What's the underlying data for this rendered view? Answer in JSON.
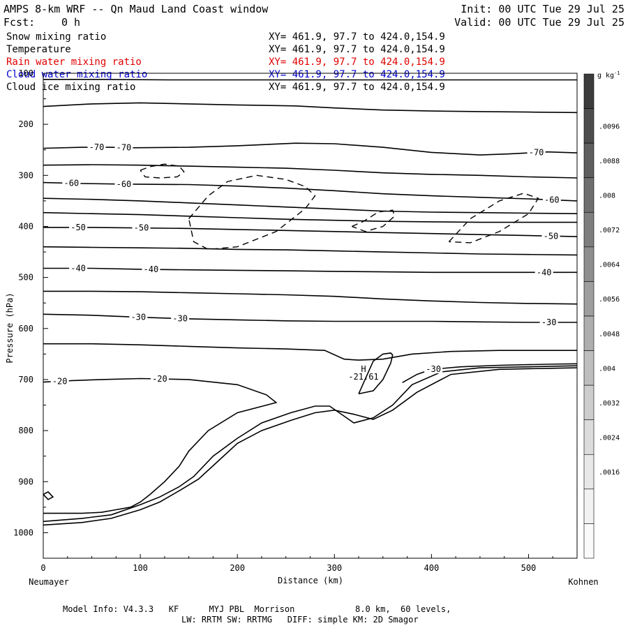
{
  "header": {
    "title": "AMPS 8-km WRF -- Qn Maud Land Coast window",
    "init": "Init: 00 UTC Tue 29 Jul 25",
    "fcst_label": "Fcst:",
    "fcst_value": "0 h",
    "valid": "Valid: 00 UTC Tue 29 Jul 25"
  },
  "fields": [
    {
      "name": "Snow mixing ratio",
      "xy": "XY= 461.9, 97.7 to 424.0,154.9",
      "color": "#000000"
    },
    {
      "name": "Temperature",
      "xy": "XY= 461.9, 97.7 to 424.0,154.9",
      "color": "#000000"
    },
    {
      "name": "Rain water mixing ratio",
      "xy": "XY= 461.9, 97.7 to 424.0,154.9",
      "color": "#e00000"
    },
    {
      "name": "Cloud water mixing ratio",
      "xy": "XY= 461.9, 97.7 to 424.0,154.9",
      "color": "#0000cc"
    },
    {
      "name": "Cloud ice mixing ratio",
      "xy": "XY= 461.9, 97.7 to 424.0,154.9",
      "color": "#000000"
    }
  ],
  "chart_data": {
    "type": "line",
    "xlabel": "Distance (km)",
    "ylabel": "Pressure (hPa)",
    "xlim": [
      0,
      550
    ],
    "ylim": [
      1050,
      100
    ],
    "xticks": [
      0,
      100,
      200,
      300,
      400,
      500
    ],
    "yticks": [
      100,
      200,
      300,
      400,
      500,
      600,
      700,
      800,
      900,
      1000
    ],
    "x_endpoints": {
      "left": "Neumayer",
      "right": "Kohnen"
    },
    "grid": false,
    "temperature_contours": [
      {
        "x": [
          0,
          60,
          130,
          200,
          280,
          370,
          460,
          550
        ],
        "y": [
          112,
          112,
          113,
          113,
          113,
          113,
          113,
          113
        ]
      },
      {
        "x": [
          0,
          50,
          100,
          150,
          200,
          260,
          300,
          350,
          400,
          450,
          500,
          550
        ],
        "y": [
          165,
          160,
          158,
          160,
          162,
          164,
          168,
          172,
          174,
          175,
          176,
          177
        ]
      },
      {
        "x": [
          0,
          40,
          70,
          90,
          150,
          200,
          260,
          300,
          350,
          400,
          450,
          480,
          520,
          550
        ],
        "y": [
          247,
          245,
          245,
          246,
          245,
          242,
          237,
          238,
          245,
          255,
          260,
          258,
          254,
          256
        ],
        "label": "-70",
        "label_x": [
          55,
          83,
          508
        ]
      },
      {
        "x": [
          0,
          50,
          100,
          150,
          200,
          250,
          300,
          350,
          400,
          450,
          500,
          550
        ],
        "y": [
          280,
          279,
          280,
          282,
          284,
          286,
          290,
          295,
          298,
          300,
          303,
          305
        ]
      },
      {
        "x": [
          0,
          40,
          80,
          150,
          200,
          250,
          300,
          350,
          400,
          450,
          500,
          550
        ],
        "y": [
          314,
          316,
          317,
          318,
          321,
          325,
          330,
          336,
          340,
          343,
          346,
          350
        ],
        "label": "-60",
        "label_x": [
          29,
          83,
          524
        ]
      },
      {
        "x": [
          0,
          50,
          100,
          150,
          200,
          250,
          300,
          350,
          400,
          450,
          500,
          550
        ],
        "y": [
          345,
          347,
          350,
          354,
          358,
          362,
          366,
          370,
          372,
          373,
          374,
          375
        ]
      },
      {
        "x": [
          0,
          50,
          100,
          150,
          200,
          250,
          300,
          350,
          400,
          450,
          500,
          550
        ],
        "y": [
          373,
          375,
          377,
          380,
          383,
          386,
          388,
          390,
          391,
          392,
          392,
          392
        ]
      },
      {
        "x": [
          0,
          50,
          100,
          150,
          200,
          250,
          300,
          350,
          400,
          450,
          500,
          550
        ],
        "y": [
          402,
          402,
          403,
          404,
          406,
          408,
          410,
          412,
          414,
          416,
          418,
          420
        ],
        "label": "-50",
        "label_x": [
          36,
          101,
          523
        ]
      },
      {
        "x": [
          0,
          50,
          100,
          150,
          200,
          250,
          300,
          350,
          400,
          450,
          500,
          550
        ],
        "y": [
          440,
          441,
          442,
          443,
          445,
          446,
          448,
          450,
          452,
          454,
          455,
          456
        ]
      },
      {
        "x": [
          0,
          50,
          100,
          150,
          200,
          250,
          300,
          350,
          400,
          450,
          500,
          550
        ],
        "y": [
          482,
          482,
          484,
          485,
          486,
          487,
          488,
          489,
          490,
          490,
          490,
          490
        ],
        "label": "-40",
        "label_x": [
          36,
          111,
          516
        ]
      },
      {
        "x": [
          0,
          50,
          100,
          150,
          200,
          250,
          300,
          350,
          400,
          450,
          500,
          550
        ],
        "y": [
          527,
          527,
          528,
          530,
          532,
          534,
          537,
          542,
          546,
          549,
          551,
          552
        ]
      },
      {
        "x": [
          0,
          50,
          100,
          150,
          200,
          250,
          300,
          350,
          400,
          450,
          500,
          550
        ],
        "y": [
          572,
          574,
          578,
          581,
          583,
          585,
          586,
          586,
          586,
          587,
          588,
          588
        ],
        "label": "-30",
        "label_x": [
          98,
          141,
          521
        ]
      },
      {
        "x": [
          0,
          50,
          100,
          150,
          200,
          250,
          290,
          310,
          325,
          350,
          380,
          420,
          470,
          520,
          550
        ],
        "y": [
          630,
          630,
          632,
          635,
          638,
          640,
          643,
          660,
          662,
          660,
          650,
          645,
          643,
          643,
          643
        ]
      },
      {
        "x": [
          0,
          30,
          60,
          100,
          150,
          200,
          230,
          240,
          200,
          170,
          150,
          140,
          125,
          110,
          100,
          90,
          75,
          60,
          40,
          20,
          10,
          0
        ],
        "y": [
          705,
          702,
          700,
          698,
          700,
          710,
          730,
          745,
          765,
          800,
          840,
          870,
          900,
          925,
          940,
          950,
          955,
          960,
          962,
          962,
          962,
          962
        ],
        "label": "-20",
        "label_x": [
          17,
          120
        ]
      },
      {
        "x": [
          370,
          385,
          400,
          430,
          470,
          520,
          550
        ],
        "y": [
          706,
          690,
          680,
          675,
          672,
          670,
          669
        ],
        "label": "-30",
        "label_x": [
          402
        ]
      },
      {
        "x": [
          325,
          340,
          350,
          358,
          360,
          358,
          350,
          340,
          325
        ],
        "y": [
          728,
          722,
          700,
          668,
          652,
          648,
          650,
          664,
          728
        ]
      }
    ],
    "terrain_contours": [
      {
        "x": [
          0,
          40,
          70,
          100,
          120,
          140,
          155,
          175,
          200,
          225,
          255,
          280,
          295,
          305,
          320,
          340,
          360,
          380,
          410,
          450,
          500,
          550
        ],
        "y": [
          978,
          972,
          965,
          945,
          930,
          910,
          890,
          850,
          815,
          785,
          765,
          752,
          752,
          765,
          785,
          775,
          750,
          710,
          685,
          677,
          675,
          673
        ]
      },
      {
        "x": [
          0,
          40,
          70,
          100,
          120,
          140,
          160,
          180,
          200,
          225,
          255,
          280,
          300,
          320,
          340,
          360,
          385,
          420,
          470,
          520,
          550
        ],
        "y": [
          985,
          980,
          972,
          955,
          940,
          918,
          895,
          860,
          825,
          800,
          780,
          765,
          760,
          768,
          778,
          760,
          725,
          690,
          680,
          678,
          677
        ]
      },
      {
        "x": [
          0,
          5,
          10,
          5,
          0
        ],
        "y": [
          925,
          935,
          930,
          920,
          925
        ]
      }
    ],
    "ice_mixing_ratio_contours": [
      {
        "x": [
          100,
          110,
          125,
          140,
          145,
          138,
          120,
          105,
          100
        ],
        "y": [
          290,
          283,
          278,
          282,
          293,
          303,
          305,
          303,
          290
        ]
      },
      {
        "x": [
          150,
          170,
          190,
          220,
          250,
          270,
          280,
          270,
          240,
          200,
          170,
          155,
          150
        ],
        "y": [
          385,
          340,
          312,
          300,
          308,
          322,
          340,
          365,
          410,
          440,
          445,
          430,
          385
        ]
      },
      {
        "x": [
          318,
          330,
          345,
          360,
          362,
          350,
          332,
          318
        ],
        "y": [
          400,
          390,
          372,
          368,
          380,
          400,
          410,
          400
        ]
      },
      {
        "x": [
          418,
          440,
          470,
          495,
          510,
          500,
          470,
          440,
          418
        ],
        "y": [
          430,
          385,
          350,
          335,
          345,
          375,
          410,
          432,
          430
        ]
      }
    ],
    "annotations": [
      {
        "text": "H",
        "x": 330,
        "y": 685
      },
      {
        "text": "-21.61",
        "x": 330,
        "y": 700
      }
    ],
    "colorbar": {
      "unit": "g kg",
      "unit_exponent": "-1",
      "ticks": [
        ".0096",
        ".0088",
        ".008",
        ".0072",
        ".0064",
        ".0056",
        ".0048",
        ".004",
        ".0032",
        ".0024",
        ".0016"
      ],
      "shades": [
        "#3c3c3c",
        "#4d4d4d",
        "#5e5e5e",
        "#6e6e6e",
        "#7e7e7e",
        "#8e8e8e",
        "#9e9e9e",
        "#aeaeae",
        "#bebebe",
        "#cdcdcd",
        "#dcdcdc",
        "#e8e8e8",
        "#f2f2f2",
        "#fafafa"
      ]
    }
  },
  "footer": {
    "line1": "Model Info: V4.3.3   KF      MYJ PBL  Morrison            8.0 km,  60 levels,",
    "line2": "LW: RRTM SW: RRTMG   DIFF: simple KM: 2D Smagor"
  }
}
